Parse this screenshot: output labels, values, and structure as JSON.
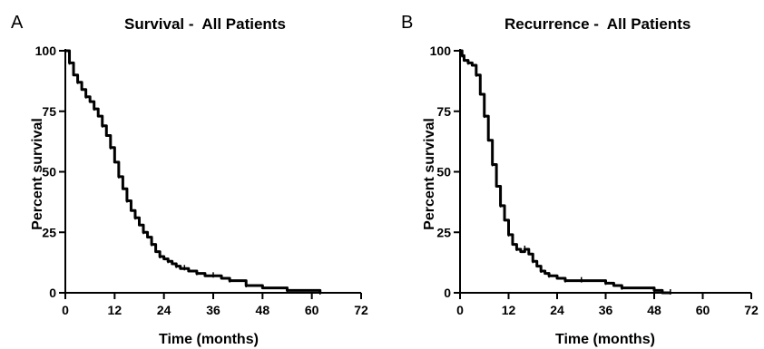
{
  "chart_data": [
    {
      "type": "line",
      "panel_label": "A",
      "title": "Survival -  All Patients",
      "xlabel": "Time (months)",
      "ylabel": "Percent survival",
      "xlim": [
        0,
        72
      ],
      "ylim": [
        0,
        100
      ],
      "xticks": [
        "0",
        "12",
        "24",
        "36",
        "48",
        "60",
        "72"
      ],
      "yticks": [
        "0",
        "25",
        "50",
        "75",
        "100"
      ],
      "grid": false,
      "series": [
        {
          "x": [
            0,
            1,
            2,
            3,
            4,
            5,
            6,
            7,
            8,
            9,
            10,
            11,
            12,
            13,
            14,
            15,
            16,
            17,
            18,
            19,
            20,
            21,
            22,
            23,
            24,
            25,
            26,
            27,
            28,
            29,
            30,
            32,
            34,
            36,
            38,
            40,
            42,
            44,
            48,
            54,
            60,
            62
          ],
          "y": [
            100,
            95,
            90,
            87,
            84,
            81,
            79,
            76,
            73,
            69,
            65,
            60,
            54,
            48,
            43,
            38,
            34,
            31,
            28,
            25,
            23,
            20,
            17,
            15,
            14,
            13,
            12,
            11,
            10,
            10,
            9,
            8,
            7,
            7,
            6,
            5,
            5,
            3,
            2,
            1,
            1,
            0
          ]
        }
      ]
    },
    {
      "type": "line",
      "panel_label": "B",
      "title": "Recurrence -  All Patients",
      "xlabel": "Time (months)",
      "ylabel": "Percent survival",
      "xlim": [
        0,
        72
      ],
      "ylim": [
        0,
        100
      ],
      "xticks": [
        "0",
        "12",
        "24",
        "36",
        "48",
        "60",
        "72"
      ],
      "yticks": [
        "0",
        "25",
        "50",
        "75",
        "100"
      ],
      "grid": false,
      "series": [
        {
          "x": [
            0,
            0.5,
            1,
            2,
            3,
            4,
            5,
            6,
            7,
            8,
            9,
            10,
            11,
            12,
            13,
            14,
            15,
            16,
            17,
            18,
            19,
            20,
            21,
            22,
            24,
            26,
            28,
            30,
            34,
            36,
            38,
            40,
            44,
            48,
            50,
            52
          ],
          "y": [
            100,
            98,
            96,
            95,
            94,
            90,
            82,
            73,
            63,
            53,
            44,
            36,
            30,
            24,
            20,
            18,
            17,
            18,
            16,
            13,
            11,
            9,
            8,
            7,
            6,
            5,
            5,
            5,
            5,
            4,
            3,
            2,
            2,
            1,
            0,
            0
          ]
        }
      ]
    }
  ]
}
